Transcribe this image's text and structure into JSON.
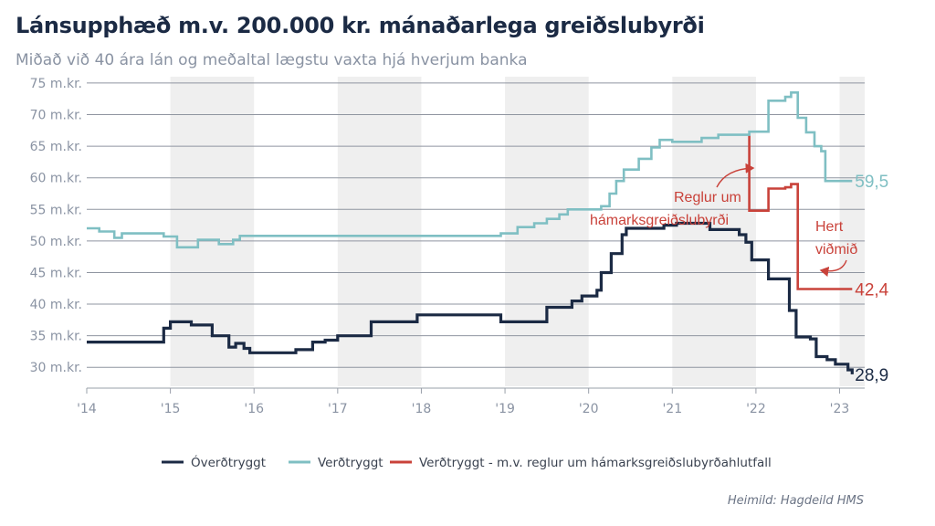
{
  "header": {
    "title": "Lánsupphæð m.v. 200.000 kr. mánaðarlega greiðslubyrði",
    "subtitle": "Miðað við 40 ára lán og meðaltal lægstu vaxta hjá hverjum banka"
  },
  "source": "Heimild: Hagdeild HMS",
  "chart_data": {
    "type": "line",
    "title": "Lánsupphæð m.v. 200.000 kr. mánaðarlega greiðslubyrði",
    "subtitle": "Miðað við 40 ára lán og meðaltal lægstu vaxta hjá hverjum banka",
    "xlabel": "",
    "ylabel": "",
    "xlim": [
      2014,
      2023.3
    ],
    "ylim": [
      27,
      76
    ],
    "grid": true,
    "shaded_years": [
      2015,
      2017,
      2019,
      2021,
      2023
    ],
    "y_ticks": [
      {
        "value": 75,
        "label": "75 m.kr."
      },
      {
        "value": 70,
        "label": "70 m.kr."
      },
      {
        "value": 65,
        "label": "65 m.kr."
      },
      {
        "value": 60,
        "label": "60 m.kr."
      },
      {
        "value": 55,
        "label": "55 m.kr."
      },
      {
        "value": 50,
        "label": "50 m.kr."
      },
      {
        "value": 45,
        "label": "45 m.kr."
      },
      {
        "value": 40,
        "label": "40 m.kr."
      },
      {
        "value": 35,
        "label": "35 m.kr."
      },
      {
        "value": 30,
        "label": "30 m.kr."
      }
    ],
    "x_ticks": [
      {
        "value": 2014,
        "label": "'14"
      },
      {
        "value": 2015,
        "label": "'15"
      },
      {
        "value": 2016,
        "label": "'16"
      },
      {
        "value": 2017,
        "label": "'17"
      },
      {
        "value": 2018,
        "label": "'18"
      },
      {
        "value": 2019,
        "label": "'19"
      },
      {
        "value": 2020,
        "label": "'20"
      },
      {
        "value": 2021,
        "label": "'21"
      },
      {
        "value": 2022,
        "label": "'22"
      },
      {
        "value": 2023,
        "label": "'23"
      }
    ],
    "series": [
      {
        "name": "Verðtryggt",
        "color": "#7fbfc3",
        "end_label": "59,5",
        "points": [
          [
            2014.0,
            52.0
          ],
          [
            2014.15,
            52.0
          ],
          [
            2014.15,
            51.5
          ],
          [
            2014.33,
            51.5
          ],
          [
            2014.33,
            50.5
          ],
          [
            2014.42,
            50.5
          ],
          [
            2014.42,
            51.2
          ],
          [
            2014.92,
            51.2
          ],
          [
            2014.92,
            50.7
          ],
          [
            2015.08,
            50.7
          ],
          [
            2015.08,
            49.0
          ],
          [
            2015.33,
            49.0
          ],
          [
            2015.33,
            50.2
          ],
          [
            2015.58,
            50.2
          ],
          [
            2015.58,
            49.5
          ],
          [
            2015.75,
            49.5
          ],
          [
            2015.75,
            50.2
          ],
          [
            2015.83,
            50.2
          ],
          [
            2015.83,
            50.8
          ],
          [
            2016.5,
            50.8
          ],
          [
            2018.0,
            50.8
          ],
          [
            2018.95,
            50.8
          ],
          [
            2018.95,
            51.2
          ],
          [
            2019.15,
            51.2
          ],
          [
            2019.15,
            52.2
          ],
          [
            2019.35,
            52.2
          ],
          [
            2019.35,
            52.8
          ],
          [
            2019.5,
            52.8
          ],
          [
            2019.5,
            53.5
          ],
          [
            2019.65,
            53.5
          ],
          [
            2019.65,
            54.2
          ],
          [
            2019.75,
            54.2
          ],
          [
            2019.75,
            55.0
          ],
          [
            2020.15,
            55.0
          ],
          [
            2020.15,
            55.5
          ],
          [
            2020.25,
            55.5
          ],
          [
            2020.25,
            57.5
          ],
          [
            2020.33,
            57.5
          ],
          [
            2020.33,
            59.5
          ],
          [
            2020.42,
            59.5
          ],
          [
            2020.42,
            61.3
          ],
          [
            2020.6,
            61.3
          ],
          [
            2020.6,
            63.0
          ],
          [
            2020.75,
            63.0
          ],
          [
            2020.75,
            64.8
          ],
          [
            2020.85,
            64.8
          ],
          [
            2020.85,
            66.0
          ],
          [
            2021.0,
            66.0
          ],
          [
            2021.0,
            65.7
          ],
          [
            2021.35,
            65.7
          ],
          [
            2021.35,
            66.3
          ],
          [
            2021.55,
            66.3
          ],
          [
            2021.55,
            66.8
          ],
          [
            2021.92,
            66.8
          ],
          [
            2021.92,
            67.3
          ],
          [
            2022.15,
            67.3
          ],
          [
            2022.15,
            72.2
          ],
          [
            2022.35,
            72.2
          ],
          [
            2022.35,
            72.8
          ],
          [
            2022.42,
            72.8
          ],
          [
            2022.42,
            73.5
          ],
          [
            2022.5,
            73.5
          ],
          [
            2022.5,
            69.5
          ],
          [
            2022.6,
            69.5
          ],
          [
            2022.6,
            67.2
          ],
          [
            2022.7,
            67.2
          ],
          [
            2022.7,
            65.0
          ],
          [
            2022.78,
            65.0
          ],
          [
            2022.78,
            64.2
          ],
          [
            2022.83,
            64.2
          ],
          [
            2022.83,
            59.5
          ],
          [
            2023.15,
            59.5
          ]
        ]
      },
      {
        "name": "Óverðtryggt",
        "color": "#1b2a44",
        "end_label": "28,9",
        "points": [
          [
            2014.0,
            34.0
          ],
          [
            2014.92,
            34.0
          ],
          [
            2014.92,
            36.2
          ],
          [
            2015.0,
            36.2
          ],
          [
            2015.0,
            37.2
          ],
          [
            2015.25,
            37.2
          ],
          [
            2015.25,
            36.7
          ],
          [
            2015.5,
            36.7
          ],
          [
            2015.5,
            35.0
          ],
          [
            2015.7,
            35.0
          ],
          [
            2015.7,
            33.2
          ],
          [
            2015.78,
            33.2
          ],
          [
            2015.78,
            33.8
          ],
          [
            2015.88,
            33.8
          ],
          [
            2015.88,
            33.0
          ],
          [
            2015.95,
            33.0
          ],
          [
            2015.95,
            32.3
          ],
          [
            2016.5,
            32.3
          ],
          [
            2016.5,
            32.8
          ],
          [
            2016.7,
            32.8
          ],
          [
            2016.7,
            34.0
          ],
          [
            2016.85,
            34.0
          ],
          [
            2016.85,
            34.3
          ],
          [
            2017.0,
            34.3
          ],
          [
            2017.0,
            35.0
          ],
          [
            2017.4,
            35.0
          ],
          [
            2017.4,
            37.2
          ],
          [
            2017.95,
            37.2
          ],
          [
            2017.95,
            38.3
          ],
          [
            2018.95,
            38.3
          ],
          [
            2018.95,
            37.2
          ],
          [
            2019.5,
            37.2
          ],
          [
            2019.5,
            39.5
          ],
          [
            2019.8,
            39.5
          ],
          [
            2019.8,
            40.5
          ],
          [
            2019.92,
            40.5
          ],
          [
            2019.92,
            41.3
          ],
          [
            2020.1,
            41.3
          ],
          [
            2020.1,
            42.2
          ],
          [
            2020.15,
            42.2
          ],
          [
            2020.15,
            45.0
          ],
          [
            2020.27,
            45.0
          ],
          [
            2020.27,
            48.0
          ],
          [
            2020.4,
            48.0
          ],
          [
            2020.4,
            51.0
          ],
          [
            2020.45,
            51.0
          ],
          [
            2020.45,
            52.0
          ],
          [
            2020.9,
            52.0
          ],
          [
            2020.9,
            52.5
          ],
          [
            2021.05,
            52.5
          ],
          [
            2021.05,
            52.8
          ],
          [
            2021.45,
            52.8
          ],
          [
            2021.45,
            51.8
          ],
          [
            2021.8,
            51.8
          ],
          [
            2021.8,
            51.0
          ],
          [
            2021.88,
            51.0
          ],
          [
            2021.88,
            49.8
          ],
          [
            2021.95,
            49.8
          ],
          [
            2021.95,
            47.0
          ],
          [
            2022.15,
            47.0
          ],
          [
            2022.15,
            44.0
          ],
          [
            2022.4,
            44.0
          ],
          [
            2022.4,
            39.0
          ],
          [
            2022.48,
            39.0
          ],
          [
            2022.48,
            34.8
          ],
          [
            2022.65,
            34.8
          ],
          [
            2022.65,
            34.5
          ],
          [
            2022.72,
            34.5
          ],
          [
            2022.72,
            31.7
          ],
          [
            2022.85,
            31.7
          ],
          [
            2022.85,
            31.2
          ],
          [
            2022.95,
            31.2
          ],
          [
            2022.95,
            30.5
          ],
          [
            2023.1,
            30.5
          ],
          [
            2023.1,
            29.6
          ],
          [
            2023.15,
            29.6
          ],
          [
            2023.15,
            28.9
          ]
        ]
      },
      {
        "name": "Verðtryggt - m.v. reglur um hámarksgreiðslubyrðahlutfall",
        "color": "#c9423a",
        "end_label": "42,4",
        "points": [
          [
            2021.92,
            66.8
          ],
          [
            2021.92,
            54.8
          ],
          [
            2022.15,
            54.8
          ],
          [
            2022.15,
            58.3
          ],
          [
            2022.35,
            58.3
          ],
          [
            2022.35,
            58.5
          ],
          [
            2022.42,
            58.5
          ],
          [
            2022.42,
            59.0
          ],
          [
            2022.5,
            59.0
          ],
          [
            2022.5,
            42.4
          ],
          [
            2023.15,
            42.4
          ]
        ]
      }
    ],
    "annotations": [
      {
        "id": "reglur",
        "lines": [
          "Reglur um",
          "hámarksgreiðslubyrði"
        ]
      },
      {
        "id": "hert",
        "lines": [
          "Hert",
          "viðmið"
        ]
      }
    ],
    "legend": {
      "position": "bottom",
      "items": [
        "Óverðtryggt",
        "Verðtryggt",
        "Verðtryggt - m.v. reglur um hámarksgreiðslubyrðahlutfall"
      ]
    }
  }
}
